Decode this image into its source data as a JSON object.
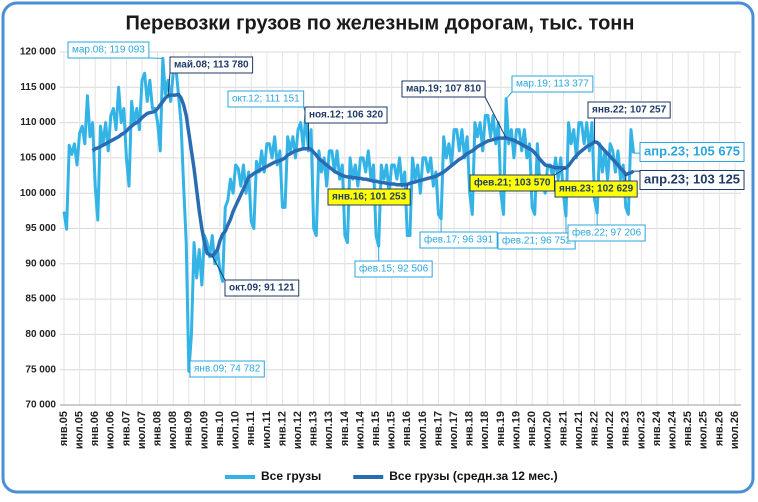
{
  "chart_data": {
    "type": "line",
    "title": "Перевозки грузов по железным дорогам, тыс. тонн",
    "ylim": [
      70000,
      120000
    ],
    "yticks": [
      {
        "value": 70000,
        "label": "70 000"
      },
      {
        "value": 75000,
        "label": "75 000"
      },
      {
        "value": 80000,
        "label": "80 000"
      },
      {
        "value": 85000,
        "label": "85 000"
      },
      {
        "value": 90000,
        "label": "90 000"
      },
      {
        "value": 95000,
        "label": "95 000"
      },
      {
        "value": 100000,
        "label": "100 000"
      },
      {
        "value": 105000,
        "label": "105 000"
      },
      {
        "value": 110000,
        "label": "110 000"
      },
      {
        "value": 115000,
        "label": "115 000"
      },
      {
        "value": 120000,
        "label": "120 000"
      }
    ],
    "grid": true,
    "legend": "bottom",
    "categories": [
      "янв.05",
      null,
      null,
      null,
      null,
      null,
      "июл.05",
      null,
      null,
      null,
      null,
      null,
      "янв.06",
      null,
      null,
      null,
      null,
      null,
      "июл.06",
      null,
      null,
      null,
      null,
      null,
      "янв.07",
      null,
      null,
      null,
      null,
      null,
      "июл.07",
      null,
      null,
      null,
      null,
      null,
      "янв.08",
      null,
      null,
      null,
      null,
      null,
      "июл.08",
      null,
      null,
      null,
      null,
      null,
      "янв.09",
      null,
      null,
      null,
      null,
      null,
      "июл.09",
      null,
      null,
      null,
      null,
      null,
      "янв.10",
      null,
      null,
      null,
      null,
      null,
      "июл.10",
      null,
      null,
      null,
      null,
      null,
      "янв.11",
      null,
      null,
      null,
      null,
      null,
      "июл.11",
      null,
      null,
      null,
      null,
      null,
      "янв.12",
      null,
      null,
      null,
      null,
      null,
      "июл.12",
      null,
      null,
      null,
      null,
      null,
      "янв.13",
      null,
      null,
      null,
      null,
      null,
      "июл.13",
      null,
      null,
      null,
      null,
      null,
      "янв.14",
      null,
      null,
      null,
      null,
      null,
      "июл.14",
      null,
      null,
      null,
      null,
      null,
      "янв.15",
      null,
      null,
      null,
      null,
      null,
      "июл.15",
      null,
      null,
      null,
      null,
      null,
      "янв.16",
      null,
      null,
      null,
      null,
      null,
      "июл.16",
      null,
      null,
      null,
      null,
      null,
      "янв.17",
      null,
      null,
      null,
      null,
      null,
      "июл.17",
      null,
      null,
      null,
      null,
      null,
      "янв.18",
      null,
      null,
      null,
      null,
      null,
      "июл.18",
      null,
      null,
      null,
      null,
      null,
      "янв.19",
      null,
      null,
      null,
      null,
      null,
      "июл.19",
      null,
      null,
      null,
      null,
      null,
      "янв.20",
      null,
      null,
      null,
      null,
      null,
      "июл.20",
      null,
      null,
      null,
      null,
      null,
      "янв.21",
      null,
      null,
      null,
      null,
      null,
      "июл.21",
      null,
      null,
      null,
      null,
      null,
      "янв.22",
      null,
      null,
      null,
      null,
      null,
      "июл.22",
      null,
      null,
      null,
      null,
      null,
      "янв.23",
      null,
      null,
      null,
      null,
      null,
      "июл.23",
      null,
      null,
      null,
      null,
      null,
      "янв.24",
      null,
      null,
      null,
      null,
      null,
      "июл.24",
      null,
      null,
      null,
      null,
      null,
      "янв.25",
      null,
      null,
      null,
      null,
      null,
      "июл.25",
      null,
      null,
      null,
      null,
      null,
      "янв.26",
      null,
      null,
      null,
      null,
      null,
      "июл.26"
    ],
    "series": [
      {
        "name": "Все грузы",
        "color": "#33b3e6",
        "values": [
          97400,
          94900,
          106800,
          105500,
          107000,
          104000,
          108500,
          109500,
          107000,
          113800,
          108000,
          110000,
          101000,
          96200,
          109500,
          107000,
          110000,
          106000,
          111000,
          112000,
          109000,
          115000,
          110000,
          112000,
          105000,
          101000,
          113000,
          110000,
          112000,
          109000,
          116000,
          117000,
          113000,
          116000,
          112000,
          112000,
          110000,
          106000,
          119093,
          114000,
          116000,
          113000,
          117000,
          118000,
          114000,
          110000,
          101000,
          93000,
          74782,
          80000,
          93000,
          88000,
          92000,
          87000,
          94000,
          93000,
          91000,
          94000,
          90000,
          92000,
          89000,
          87500,
          98000,
          99000,
          102000,
          100000,
          104000,
          103500,
          101000,
          104000,
          100000,
          103000,
          96000,
          95000,
          104500,
          103000,
          106000,
          103000,
          107000,
          107000,
          105000,
          108000,
          104000,
          106000,
          98000,
          98000,
          108000,
          106000,
          108000,
          105000,
          109000,
          110000,
          106500,
          111151,
          106000,
          109000,
          95000,
          94000,
          106000,
          103000,
          105000,
          101000,
          106000,
          106000,
          103000,
          106000,
          102000,
          104000,
          94000,
          93000,
          105000,
          102000,
          104000,
          101000,
          105000,
          105000,
          103000,
          106000,
          102000,
          104000,
          94000,
          92506,
          104000,
          102000,
          104000,
          100000,
          104000,
          104000,
          102000,
          105000,
          101000,
          103000,
          94000,
          94000,
          105000,
          102000,
          104000,
          100000,
          105000,
          105000,
          103000,
          105000,
          101000,
          103000,
          97000,
          96391,
          108000,
          105000,
          107000,
          104000,
          109000,
          109000,
          106000,
          109000,
          105000,
          108000,
          100000,
          97000,
          110000,
          108000,
          110000,
          106000,
          111000,
          111000,
          108000,
          111000,
          107000,
          110000,
          100000,
          97000,
          113377,
          107000,
          109000,
          105000,
          109000,
          109000,
          106000,
          109000,
          105000,
          107000,
          98000,
          97000,
          107000,
          101000,
          102000,
          100000,
          104000,
          104000,
          102000,
          105000,
          102000,
          105000,
          100000,
          96752,
          110000,
          107000,
          109000,
          105000,
          110000,
          110000,
          107000,
          110000,
          106000,
          110000,
          99000,
          97206,
          107000,
          103000,
          106000,
          102000,
          107000,
          106000,
          103000,
          106000,
          102000,
          104000,
          98000,
          97000,
          109000,
          105675,
          null,
          null,
          null,
          null,
          null,
          null,
          null,
          null,
          null,
          null,
          null,
          null,
          null,
          null,
          null,
          null,
          null,
          null,
          null,
          null,
          null,
          null,
          null,
          null,
          null,
          null,
          null,
          null,
          null,
          null,
          null,
          null,
          null,
          null,
          null,
          null,
          null,
          null,
          null
        ]
      },
      {
        "name": "Все грузы (средн.за 12 мес.)",
        "color": "#2a6cb3",
        "values": [
          null,
          null,
          null,
          null,
          null,
          null,
          null,
          null,
          null,
          null,
          null,
          106000,
          106300,
          106400,
          106600,
          106800,
          107000,
          107200,
          107400,
          107600,
          107800,
          108000,
          108300,
          108500,
          108800,
          109200,
          109500,
          109800,
          110000,
          110300,
          110700,
          111000,
          111300,
          111400,
          111500,
          111600,
          112000,
          112500,
          113000,
          113500,
          113780,
          113900,
          113900,
          113900,
          114000,
          113500,
          112500,
          111000,
          108500,
          106000,
          103500,
          100500,
          97500,
          95000,
          93000,
          91500,
          91300,
          91121,
          91500,
          92000,
          93300,
          94200,
          94600,
          95500,
          96300,
          97400,
          98200,
          99000,
          99800,
          100600,
          101400,
          102300,
          102500,
          102800,
          103000,
          103200,
          103400,
          103600,
          103800,
          104000,
          104200,
          104400,
          104500,
          104600,
          104800,
          105000,
          105400,
          105600,
          105800,
          106000,
          106100,
          106200,
          106300,
          106300,
          106320,
          106200,
          105800,
          105400,
          104900,
          104600,
          104300,
          104000,
          103700,
          103400,
          103100,
          102900,
          102700,
          102500,
          102400,
          102300,
          102300,
          102200,
          102200,
          102100,
          102100,
          102000,
          102000,
          101900,
          101800,
          101700,
          101700,
          101600,
          101500,
          101500,
          101400,
          101300,
          101300,
          101300,
          101200,
          101200,
          101200,
          101200,
          101253,
          101400,
          101500,
          101600,
          101700,
          101800,
          101900,
          102000,
          102100,
          102200,
          102300,
          102400,
          102600,
          102800,
          103000,
          103300,
          103600,
          103900,
          104200,
          104500,
          104800,
          105000,
          105300,
          105600,
          105800,
          106000,
          106300,
          106600,
          106800,
          107000,
          107200,
          107400,
          107500,
          107600,
          107700,
          107800,
          107800,
          107800,
          107810,
          107700,
          107600,
          107500,
          107300,
          107100,
          106900,
          106700,
          106500,
          106300,
          106100,
          105700,
          105300,
          104800,
          104400,
          104000,
          103900,
          103800,
          103700,
          103600,
          103600,
          103600,
          103600,
          103570,
          103900,
          104400,
          104900,
          105300,
          105700,
          106000,
          106300,
          106600,
          106800,
          107000,
          107257,
          107200,
          106800,
          106400,
          106000,
          105600,
          105200,
          104800,
          104400,
          104000,
          103500,
          103200,
          102629,
          102800,
          102900,
          103125,
          null,
          null,
          null,
          null,
          null,
          null,
          null,
          null,
          null,
          null,
          null,
          null,
          null,
          null,
          null,
          null,
          null,
          null,
          null,
          null,
          null,
          null,
          null,
          null,
          null,
          null,
          null,
          null,
          null,
          null,
          null,
          null,
          null,
          null,
          null,
          null,
          null,
          null,
          null
        ]
      }
    ],
    "annotations": [
      "мар.08; 119 093",
      "май.08; 113 780",
      "окт.12; 111 151",
      "ноя.12; 106 320",
      "мар.19; 107 810",
      "мар.19; 113 377",
      "янв.22; 107 257",
      "апр.23; 105 675",
      "апр.23; 103 125",
      "фев.21; 103 570",
      "янв.23; 102 629",
      "янв.16; 101 253",
      "фев.17; 96 391",
      "фев.21; 96 752",
      "фев.22; 97 206",
      "фев.15; 92 506",
      "окт.09; 91 121",
      "янв.09; 74 782"
    ]
  }
}
